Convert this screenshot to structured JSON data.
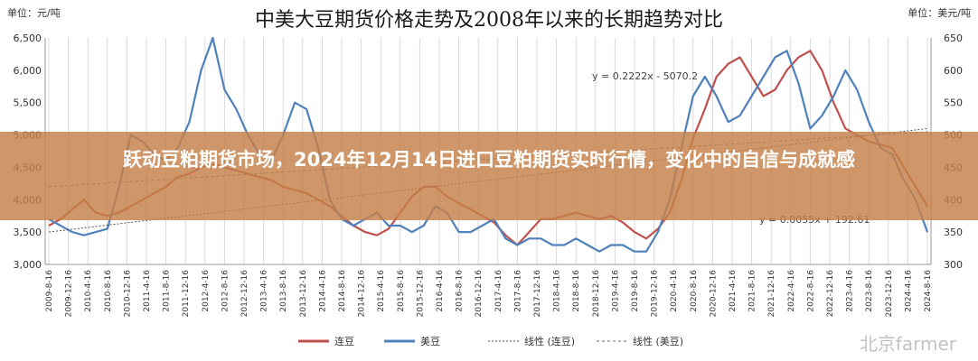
{
  "units": {
    "left": "单位：元/吨",
    "right": "单位：美元/吨"
  },
  "banner_text": "跃动豆粕期货市场，2024年12月14日进口豆粕期货实时行情，变化中的自信与成就感",
  "watermark": "北京farmer",
  "chart_data": {
    "type": "line",
    "title": "中美大豆期货价格走势及2008年以来的长期趋势对比",
    "x_labels": [
      "2009-8-16",
      "2009-12-16",
      "2010-4-16",
      "2010-8-16",
      "2010-12-16",
      "2011-4-16",
      "2011-8-16",
      "2011-12-16",
      "2012-4-16",
      "2012-8-16",
      "2012-12-16",
      "2013-4-16",
      "2013-8-16",
      "2013-12-16",
      "2014-4-16",
      "2014-8-16",
      "2014-12-16",
      "2015-4-16",
      "2015-8-16",
      "2015-12-16",
      "2016-4-16",
      "2016-8-16",
      "2016-12-16",
      "2017-4-16",
      "2017-8-16",
      "2017-12-16",
      "2018-4-16",
      "2018-8-16",
      "2018-12-16",
      "2019-4-16",
      "2019-8-16",
      "2019-12-16",
      "2020-4-16",
      "2020-8-16",
      "2020-12-16",
      "2021-4-16",
      "2021-8-16",
      "2021-12-16",
      "2022-4-16",
      "2022-8-16",
      "2022-12-16",
      "2023-4-16",
      "2023-8-16",
      "2023-12-16",
      "2024-4-16",
      "2024-8-16"
    ],
    "y_left": {
      "min": 3000,
      "max": 6500,
      "ticks": [
        "3,000",
        "3,500",
        "4,000",
        "4,500",
        "5,000",
        "5,500",
        "6,000",
        "6,500"
      ]
    },
    "y_right": {
      "min": 300,
      "max": 650,
      "ticks": [
        "300",
        "350",
        "400",
        "450",
        "500",
        "550",
        "600",
        "650"
      ]
    },
    "grid": "vertical",
    "series": [
      {
        "name": "连豆",
        "axis": "left",
        "color": "#c0504d",
        "values": [
          3600,
          3700,
          3850,
          4000,
          3800,
          3750,
          3800,
          3900,
          4000,
          4100,
          4200,
          4350,
          4400,
          4500,
          4550,
          4500,
          4450,
          4400,
          4350,
          4300,
          4200,
          4150,
          4100,
          4000,
          3900,
          3750,
          3600,
          3500,
          3450,
          3550,
          3800,
          4050,
          4200,
          4200,
          4050,
          3950,
          3850,
          3750,
          3650,
          3450,
          3300,
          3500,
          3700,
          3700,
          3750,
          3800,
          3750,
          3700,
          3750,
          3650,
          3500,
          3400,
          3550,
          3800,
          4300,
          4950,
          5400,
          5900,
          6100,
          6200,
          5900,
          5600,
          5700,
          6000,
          6200,
          6300,
          6000,
          5500,
          5100,
          5000,
          4900,
          4850,
          4800,
          4500,
          4200,
          3900
        ]
      },
      {
        "name": "美豆",
        "axis": "right",
        "color": "#4f81bd",
        "values": [
          370,
          360,
          350,
          345,
          350,
          355,
          420,
          500,
          490,
          470,
          460,
          480,
          520,
          600,
          650,
          570,
          540,
          500,
          470,
          460,
          500,
          550,
          540,
          480,
          400,
          370,
          360,
          370,
          380,
          360,
          360,
          350,
          360,
          390,
          380,
          350,
          350,
          360,
          370,
          340,
          330,
          340,
          340,
          330,
          330,
          340,
          330,
          320,
          330,
          330,
          320,
          320,
          350,
          400,
          480,
          560,
          590,
          560,
          520,
          530,
          560,
          590,
          620,
          630,
          580,
          510,
          530,
          560,
          600,
          570,
          520,
          480,
          470,
          430,
          400,
          350
        ]
      },
      {
        "name": "线性 (连豆)",
        "axis": "left",
        "color": "#555555",
        "dash": "2,2",
        "values": [
          3500,
          5100
        ]
      },
      {
        "name": "线性 (美豆)",
        "axis": "right",
        "color": "#666666",
        "dash": "3,3",
        "values": [
          420,
          505
        ]
      }
    ],
    "annotations": [
      {
        "text": "y = 0.2222x - 5070.2",
        "near": "upper-right"
      },
      {
        "text": "y = 0.0055x + 192.61",
        "near": "lower-right"
      }
    ],
    "legend": {
      "placement": "bottom"
    }
  }
}
